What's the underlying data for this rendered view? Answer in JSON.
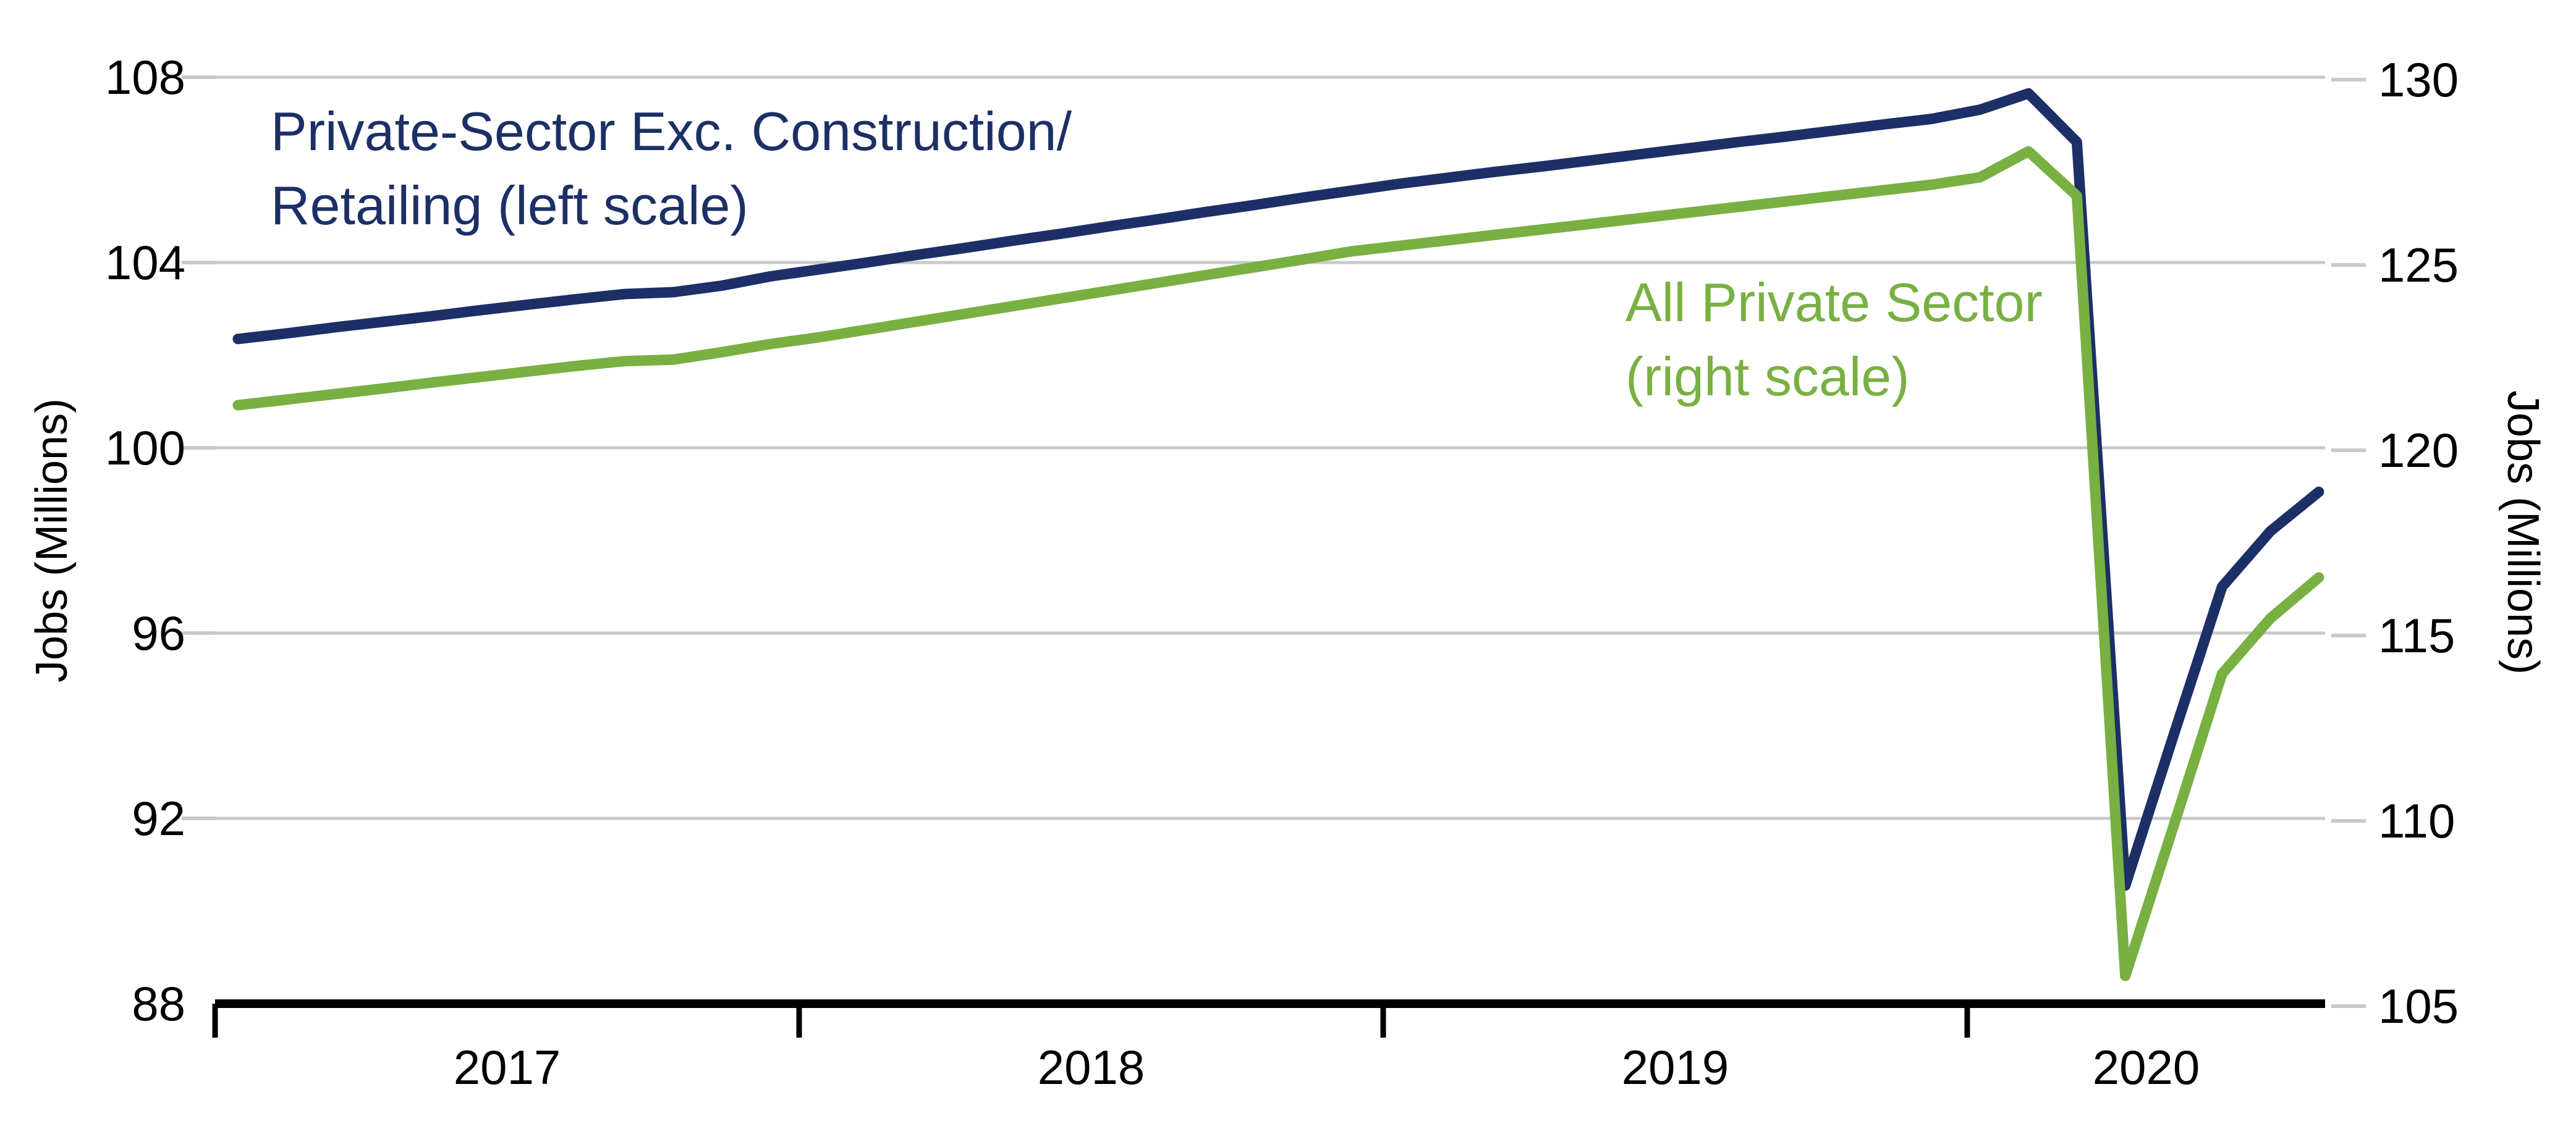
{
  "chart_data": {
    "type": "line",
    "title": "",
    "grid": true,
    "background": "#ffffff",
    "grid_color": "#c9c9c9",
    "axis_color": "#000000",
    "x_axis": {
      "tick_labels": [
        "2017",
        "2018",
        "2019",
        "2020"
      ],
      "months": [
        "2017-01",
        "2017-02",
        "2017-03",
        "2017-04",
        "2017-05",
        "2017-06",
        "2017-07",
        "2017-08",
        "2017-09",
        "2017-10",
        "2017-11",
        "2017-12",
        "2018-01",
        "2018-02",
        "2018-03",
        "2018-04",
        "2018-05",
        "2018-06",
        "2018-07",
        "2018-08",
        "2018-09",
        "2018-10",
        "2018-11",
        "2018-12",
        "2019-01",
        "2019-02",
        "2019-03",
        "2019-04",
        "2019-05",
        "2019-06",
        "2019-07",
        "2019-08",
        "2019-09",
        "2019-10",
        "2019-11",
        "2019-12",
        "2020-01",
        "2020-02",
        "2020-03",
        "2020-04",
        "2020-05",
        "2020-06",
        "2020-07",
        "2020-08"
      ]
    },
    "left_axis": {
      "title": "Jobs (Millions)",
      "ticks": [
        108,
        104,
        100,
        96,
        92,
        88
      ],
      "range": [
        88,
        108
      ]
    },
    "right_axis": {
      "title": "Jobs (Millions)",
      "ticks": [
        130,
        125,
        120,
        115,
        110,
        105
      ],
      "range": [
        105,
        130
      ]
    },
    "series": [
      {
        "name": "Private-Sector Exc. Construction/Retailing (left scale)",
        "legend_lines": [
          "Private-Sector Exc. Construction/",
          "Retailing (left scale)"
        ],
        "scale": "left",
        "color": "#1c2f66",
        "values": [
          102.35,
          102.47,
          102.6,
          102.72,
          102.84,
          102.97,
          103.09,
          103.21,
          103.32,
          103.36,
          103.5,
          103.7,
          103.85,
          104.0,
          104.16,
          104.31,
          104.47,
          104.62,
          104.78,
          104.93,
          105.09,
          105.24,
          105.4,
          105.55,
          105.7,
          105.83,
          105.96,
          106.08,
          106.21,
          106.34,
          106.47,
          106.6,
          106.72,
          106.85,
          106.98,
          107.1,
          107.3,
          107.65,
          106.6,
          90.55,
          93.8,
          97.0,
          98.2,
          99.05
        ]
      },
      {
        "name": "All Private Sector (right scale)",
        "legend_lines": [
          "All Private Sector",
          "(right scale)"
        ],
        "scale": "right",
        "color": "#78b042",
        "values": [
          121.15,
          121.3,
          121.45,
          121.6,
          121.76,
          121.91,
          122.06,
          122.21,
          122.34,
          122.38,
          122.58,
          122.8,
          122.98,
          123.19,
          123.4,
          123.61,
          123.82,
          124.03,
          124.24,
          124.45,
          124.66,
          124.87,
          125.08,
          125.3,
          125.45,
          125.6,
          125.75,
          125.9,
          126.05,
          126.2,
          126.35,
          126.5,
          126.65,
          126.8,
          126.95,
          127.1,
          127.3,
          128.0,
          126.8,
          105.75,
          109.8,
          113.9,
          115.4,
          116.5
        ]
      }
    ]
  }
}
